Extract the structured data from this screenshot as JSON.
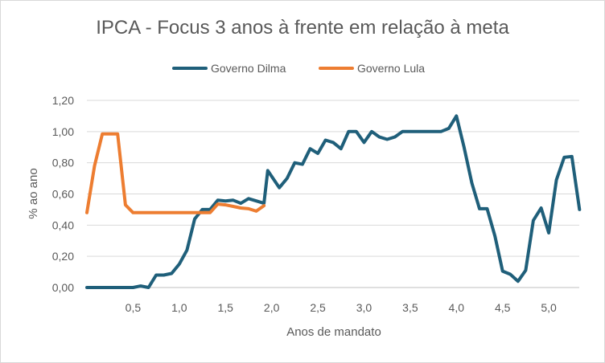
{
  "chart_data": {
    "type": "line",
    "title": "IPCA - Focus 3 anos à frente em relação à meta",
    "xlabel": "Anos de mandato",
    "ylabel": "% ao ano",
    "xlim": [
      0,
      5.33
    ],
    "ylim": [
      0,
      1.2
    ],
    "x_ticks": [
      "0,5",
      "1,0",
      "1,5",
      "2,0",
      "2,5",
      "3,0",
      "3,5",
      "4,0",
      "4,5",
      "5,0"
    ],
    "y_ticks": [
      "0,00",
      "0,20",
      "0,40",
      "0,60",
      "0,80",
      "1,00",
      "1,20"
    ],
    "grid": true,
    "legend_position": "top",
    "series": [
      {
        "name": "Governo Dilma",
        "color": "#1f5f7a",
        "points": [
          [
            0.0,
            0.0
          ],
          [
            0.083,
            0.0
          ],
          [
            0.167,
            0.0
          ],
          [
            0.25,
            0.0
          ],
          [
            0.333,
            0.0
          ],
          [
            0.417,
            0.0
          ],
          [
            0.5,
            0.0
          ],
          [
            0.583,
            0.01
          ],
          [
            0.667,
            0.0
          ],
          [
            0.75,
            0.08
          ],
          [
            0.833,
            0.08
          ],
          [
            0.917,
            0.09
          ],
          [
            1.0,
            0.15
          ],
          [
            1.083,
            0.24
          ],
          [
            1.167,
            0.44
          ],
          [
            1.25,
            0.5
          ],
          [
            1.333,
            0.5
          ],
          [
            1.417,
            0.56
          ],
          [
            1.5,
            0.555
          ],
          [
            1.583,
            0.56
          ],
          [
            1.667,
            0.54
          ],
          [
            1.75,
            0.57
          ],
          [
            1.833,
            0.555
          ],
          [
            1.917,
            0.54
          ],
          [
            1.958,
            0.75
          ],
          [
            2.083,
            0.64
          ],
          [
            2.167,
            0.7
          ],
          [
            2.25,
            0.8
          ],
          [
            2.333,
            0.79
          ],
          [
            2.417,
            0.89
          ],
          [
            2.5,
            0.86
          ],
          [
            2.583,
            0.945
          ],
          [
            2.667,
            0.93
          ],
          [
            2.75,
            0.89
          ],
          [
            2.833,
            1.0
          ],
          [
            2.917,
            1.0
          ],
          [
            3.0,
            0.93
          ],
          [
            3.083,
            1.0
          ],
          [
            3.167,
            0.965
          ],
          [
            3.25,
            0.95
          ],
          [
            3.333,
            0.965
          ],
          [
            3.417,
            1.0
          ],
          [
            3.5,
            1.0
          ],
          [
            3.583,
            1.0
          ],
          [
            3.667,
            1.0
          ],
          [
            3.75,
            1.0
          ],
          [
            3.833,
            1.0
          ],
          [
            3.917,
            1.02
          ],
          [
            4.0,
            1.1
          ],
          [
            4.083,
            0.9
          ],
          [
            4.167,
            0.67
          ],
          [
            4.25,
            0.505
          ],
          [
            4.333,
            0.505
          ],
          [
            4.417,
            0.33
          ],
          [
            4.5,
            0.105
          ],
          [
            4.583,
            0.085
          ],
          [
            4.667,
            0.04
          ],
          [
            4.75,
            0.11
          ],
          [
            4.833,
            0.43
          ],
          [
            4.917,
            0.51
          ],
          [
            5.0,
            0.35
          ],
          [
            5.083,
            0.69
          ],
          [
            5.167,
            0.835
          ],
          [
            5.25,
            0.84
          ],
          [
            5.333,
            0.5
          ]
        ]
      },
      {
        "name": "Governo Lula",
        "color": "#ed7d31",
        "points": [
          [
            0.0,
            0.48
          ],
          [
            0.083,
            0.78
          ],
          [
            0.167,
            0.985
          ],
          [
            0.25,
            0.985
          ],
          [
            0.333,
            0.985
          ],
          [
            0.417,
            0.53
          ],
          [
            0.5,
            0.48
          ],
          [
            0.583,
            0.48
          ],
          [
            0.667,
            0.48
          ],
          [
            0.75,
            0.48
          ],
          [
            0.833,
            0.48
          ],
          [
            0.917,
            0.48
          ],
          [
            1.0,
            0.48
          ],
          [
            1.083,
            0.48
          ],
          [
            1.167,
            0.48
          ],
          [
            1.25,
            0.48
          ],
          [
            1.333,
            0.48
          ],
          [
            1.417,
            0.535
          ],
          [
            1.5,
            0.53
          ],
          [
            1.583,
            0.52
          ],
          [
            1.667,
            0.51
          ],
          [
            1.75,
            0.505
          ],
          [
            1.833,
            0.49
          ],
          [
            1.917,
            0.525
          ]
        ]
      }
    ]
  }
}
